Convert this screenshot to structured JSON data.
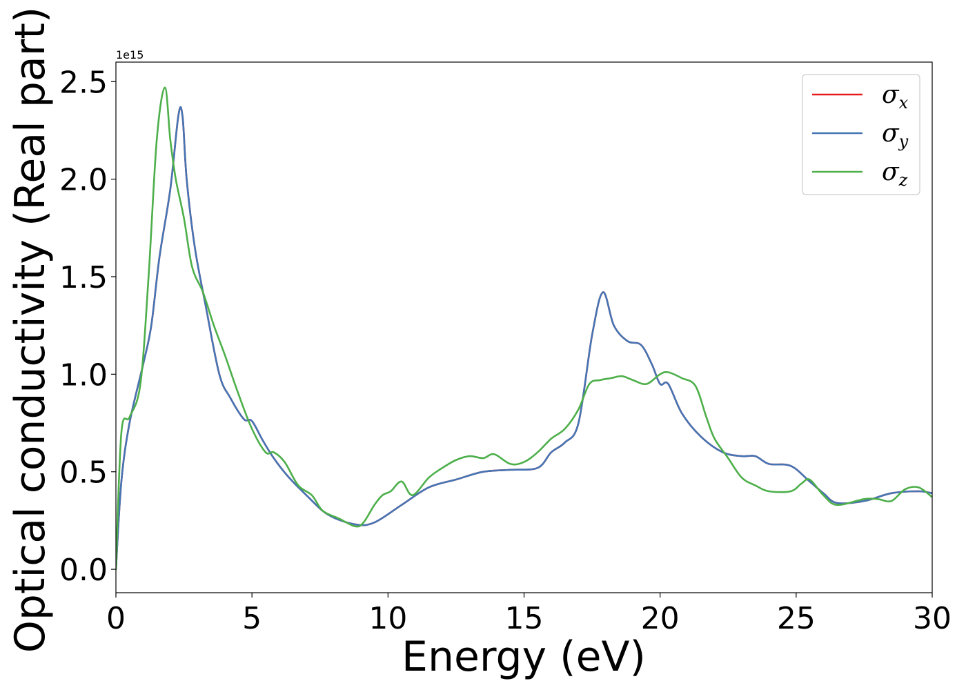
{
  "chart_data": {
    "type": "line",
    "title": "",
    "xlabel": "Energy (eV)",
    "ylabel": "Optical conductivity (Real part)",
    "y_offset_text": "1e15",
    "xlim": [
      0,
      30
    ],
    "ylim": [
      -0.12,
      2.6
    ],
    "x_ticks": [
      0,
      5,
      10,
      15,
      20,
      25,
      30
    ],
    "x_tick_labels": [
      "0",
      "5",
      "10",
      "15",
      "20",
      "25",
      "30"
    ],
    "y_ticks": [
      0.0,
      0.5,
      1.0,
      1.5,
      2.0,
      2.5
    ],
    "y_tick_labels": [
      "0.0",
      "0.5",
      "1.0",
      "1.5",
      "2.0",
      "2.5"
    ],
    "grid": false,
    "legend_position": "top-right",
    "series": [
      {
        "name": "σx",
        "symbol": "σ",
        "subscript": "x",
        "color": "#e41a1c",
        "x": [
          0,
          0.2,
          0.5,
          1.0,
          1.3,
          1.6,
          2.0,
          2.3,
          2.45,
          2.6,
          2.9,
          3.3,
          3.8,
          4.2,
          4.7,
          5.0,
          5.4,
          5.8,
          6.3,
          7.0,
          7.8,
          8.8,
          9.5,
          10.5,
          11.5,
          12.5,
          13.5,
          14.5,
          15.5,
          16.0,
          16.5,
          17.0,
          17.5,
          17.9,
          18.3,
          18.8,
          19.3,
          19.7,
          20.0,
          20.3,
          20.8,
          21.5,
          22.3,
          23.0,
          23.5,
          24.0,
          24.8,
          25.5,
          26.0,
          26.5,
          27.5,
          28.5,
          29.5,
          30.0
        ],
        "y": [
          0.0,
          0.45,
          0.75,
          1.05,
          1.25,
          1.6,
          1.95,
          2.33,
          2.32,
          2.0,
          1.65,
          1.35,
          1.0,
          0.88,
          0.77,
          0.76,
          0.66,
          0.57,
          0.48,
          0.38,
          0.28,
          0.23,
          0.24,
          0.33,
          0.42,
          0.46,
          0.5,
          0.51,
          0.52,
          0.6,
          0.65,
          0.75,
          1.2,
          1.42,
          1.25,
          1.17,
          1.15,
          1.05,
          0.95,
          0.95,
          0.8,
          0.68,
          0.6,
          0.58,
          0.58,
          0.54,
          0.53,
          0.45,
          0.39,
          0.34,
          0.35,
          0.39,
          0.4,
          0.39
        ]
      },
      {
        "name": "σy",
        "symbol": "σ",
        "subscript": "y",
        "color": "#4575b4",
        "x": [
          0,
          0.2,
          0.5,
          1.0,
          1.3,
          1.6,
          2.0,
          2.3,
          2.45,
          2.6,
          2.9,
          3.3,
          3.8,
          4.2,
          4.7,
          5.0,
          5.4,
          5.8,
          6.3,
          7.0,
          7.8,
          8.8,
          9.5,
          10.5,
          11.5,
          12.5,
          13.5,
          14.5,
          15.5,
          16.0,
          16.5,
          17.0,
          17.5,
          17.9,
          18.3,
          18.8,
          19.3,
          19.7,
          20.0,
          20.3,
          20.8,
          21.5,
          22.3,
          23.0,
          23.5,
          24.0,
          24.8,
          25.5,
          26.0,
          26.5,
          27.5,
          28.5,
          29.5,
          30.0
        ],
        "y": [
          0.0,
          0.45,
          0.75,
          1.05,
          1.25,
          1.6,
          1.95,
          2.33,
          2.32,
          2.0,
          1.65,
          1.35,
          1.0,
          0.88,
          0.77,
          0.76,
          0.66,
          0.57,
          0.48,
          0.38,
          0.28,
          0.23,
          0.24,
          0.33,
          0.42,
          0.46,
          0.5,
          0.51,
          0.52,
          0.6,
          0.65,
          0.75,
          1.2,
          1.42,
          1.25,
          1.17,
          1.15,
          1.05,
          0.95,
          0.95,
          0.8,
          0.68,
          0.6,
          0.58,
          0.58,
          0.54,
          0.53,
          0.45,
          0.39,
          0.34,
          0.35,
          0.39,
          0.4,
          0.39
        ]
      },
      {
        "name": "σz",
        "symbol": "σ",
        "subscript": "z",
        "color": "#4daf4a",
        "x": [
          0,
          0.2,
          0.5,
          0.9,
          1.2,
          1.5,
          1.8,
          2.0,
          2.2,
          2.5,
          2.8,
          3.2,
          3.6,
          4.0,
          4.5,
          5.0,
          5.5,
          5.8,
          6.2,
          6.7,
          7.2,
          7.6,
          8.2,
          8.8,
          9.1,
          9.5,
          9.8,
          10.1,
          10.5,
          10.9,
          11.5,
          12.0,
          12.5,
          13.0,
          13.5,
          13.9,
          14.5,
          15.0,
          15.5,
          16.0,
          16.5,
          17.0,
          17.4,
          17.8,
          18.2,
          18.6,
          19.0,
          19.5,
          20.0,
          20.3,
          20.8,
          21.3,
          21.7,
          22.0,
          22.5,
          23.0,
          23.5,
          24.0,
          24.8,
          25.2,
          25.5,
          26.0,
          26.5,
          27.5,
          28.0,
          28.5,
          29.0,
          29.5,
          30.0
        ],
        "y": [
          0.0,
          0.7,
          0.78,
          0.95,
          1.5,
          2.2,
          2.47,
          2.2,
          2.0,
          1.8,
          1.55,
          1.42,
          1.25,
          1.1,
          0.9,
          0.72,
          0.6,
          0.6,
          0.55,
          0.43,
          0.38,
          0.3,
          0.26,
          0.22,
          0.24,
          0.33,
          0.38,
          0.4,
          0.45,
          0.38,
          0.47,
          0.52,
          0.56,
          0.58,
          0.57,
          0.59,
          0.54,
          0.55,
          0.6,
          0.67,
          0.72,
          0.82,
          0.95,
          0.97,
          0.98,
          0.99,
          0.97,
          0.95,
          1.0,
          1.01,
          0.98,
          0.94,
          0.78,
          0.67,
          0.57,
          0.47,
          0.43,
          0.4,
          0.4,
          0.44,
          0.46,
          0.38,
          0.33,
          0.36,
          0.36,
          0.35,
          0.41,
          0.42,
          0.37
        ]
      }
    ]
  }
}
